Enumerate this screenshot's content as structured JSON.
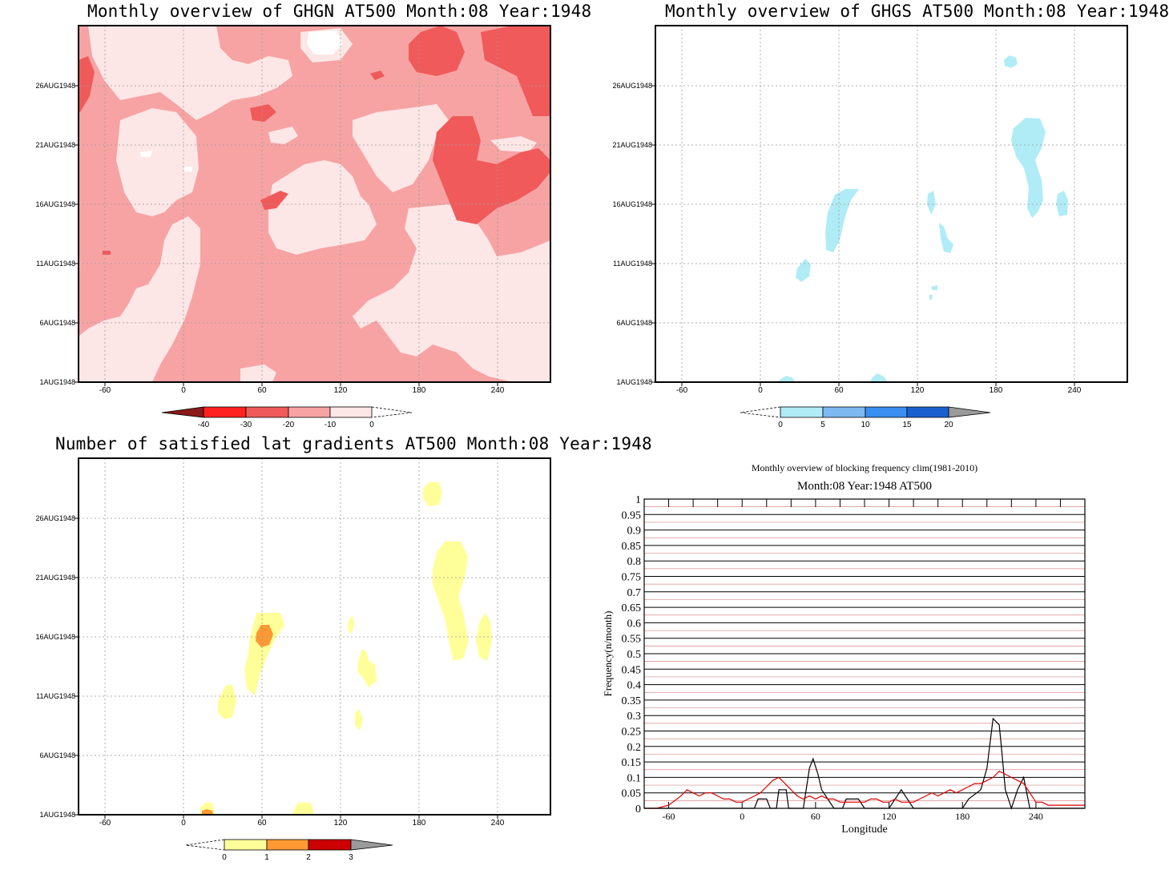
{
  "titles": {
    "ghgn": "Monthly overview of GHGN AT500 Month:08 Year:1948",
    "ghgs": "Monthly overview of GHGS AT500 Month:08 Year:1948",
    "lat": "Number of satisfied lat gradients AT500 Month:08 Year:1948",
    "freq_main": "Monthly overview of blocking frequency clim(1981-2010)",
    "freq_sub": "Month:08 Year:1948  AT500"
  },
  "date_ticks": [
    "1AUG1948",
    "6AUG1948",
    "11AUG1948",
    "16AUG1948",
    "21AUG1948",
    "26AUG1948"
  ],
  "lon_ticks": [
    "-60",
    "0",
    "60",
    "120",
    "180",
    "240"
  ],
  "colorbars": {
    "ghgn": {
      "labels": [
        "-40",
        "-30",
        "-20",
        "-10",
        "0"
      ],
      "colors": [
        "#8b1a1a",
        "#ff2020",
        "#f05a5a",
        "#f7a3a3",
        "#fde6e6"
      ]
    },
    "ghgs": {
      "labels": [
        "0",
        "5",
        "10",
        "15",
        "20"
      ],
      "colors": [
        "#b0ecf6",
        "#7db8f0",
        "#3a8ef0",
        "#1a60d0",
        "#9a9a9a"
      ]
    },
    "lat": {
      "labels": [
        "0",
        "1",
        "2",
        "3"
      ],
      "colors": [
        "#ffff99",
        "#ff9933",
        "#cc0000",
        "#9a9a9a"
      ]
    }
  },
  "chart_data": [
    {
      "type": "heatmap",
      "title": "Monthly overview of GHGN AT500 Month:08 Year:1948",
      "x_ticks": [
        "-60",
        "0",
        "60",
        "120",
        "180",
        "240"
      ],
      "y_ticks": [
        "1AUG1948",
        "6AUG1948",
        "11AUG1948",
        "16AUG1948",
        "21AUG1948",
        "26AUG1948"
      ],
      "colorbar": [
        -40,
        -30,
        -20,
        -10,
        0
      ],
      "grid": true
    },
    {
      "type": "heatmap",
      "title": "Monthly overview of GHGS AT500 Month:08 Year:1948",
      "x_ticks": [
        "-60",
        "0",
        "60",
        "120",
        "180",
        "240"
      ],
      "y_ticks": [
        "1AUG1948",
        "6AUG1948",
        "11AUG1948",
        "16AUG1948",
        "21AUG1948",
        "26AUG1948"
      ],
      "colorbar": [
        0,
        5,
        10,
        15,
        20
      ],
      "grid": true
    },
    {
      "type": "heatmap",
      "title": "Number of satisfied lat gradients AT500 Month:08 Year:1948",
      "x_ticks": [
        "-60",
        "0",
        "60",
        "120",
        "180",
        "240"
      ],
      "y_ticks": [
        "1AUG1948",
        "6AUG1948",
        "11AUG1948",
        "16AUG1948",
        "21AUG1948",
        "26AUG1948"
      ],
      "colorbar": [
        0,
        1,
        2,
        3
      ],
      "grid": true
    },
    {
      "type": "line",
      "title": "Monthly overview of blocking frequency clim(1981-2010)",
      "subtitle": "Month:08 Year:1948  AT500",
      "xlabel": "Longitude",
      "ylabel": "Frequency(n/month)",
      "xlim": [
        -80,
        280
      ],
      "ylim": [
        0,
        1
      ],
      "x_ticks": [
        -60,
        0,
        60,
        120,
        180,
        240
      ],
      "y_ticks": [
        0,
        0.05,
        0.1,
        0.15,
        0.2,
        0.25,
        0.3,
        0.35,
        0.4,
        0.45,
        0.5,
        0.55,
        0.6,
        0.65,
        0.7,
        0.75,
        0.8,
        0.85,
        0.9,
        0.95,
        1
      ],
      "series": [
        {
          "color": "#000000",
          "x": [
            -80,
            10,
            13,
            20,
            23,
            28,
            30,
            36,
            38,
            50,
            55,
            58,
            62,
            65,
            70,
            75,
            82,
            85,
            95,
            100,
            110,
            120,
            125,
            130,
            135,
            140,
            145,
            155,
            180,
            185,
            195,
            200,
            205,
            210,
            212,
            215,
            220,
            225,
            230,
            235,
            240,
            280
          ],
          "y": [
            0,
            0,
            0.03,
            0.03,
            0,
            0,
            0.06,
            0.06,
            0,
            0,
            0.13,
            0.16,
            0.11,
            0.06,
            0.03,
            0,
            0,
            0.03,
            0.03,
            0,
            0,
            0,
            0.03,
            0.06,
            0.03,
            0,
            0,
            0,
            0,
            0.03,
            0.06,
            0.13,
            0.29,
            0.27,
            0.19,
            0.06,
            0,
            0.06,
            0.1,
            0,
            0,
            0
          ]
        },
        {
          "color": "#dd0000",
          "x": [
            -80,
            -70,
            -60,
            -50,
            -45,
            -40,
            -35,
            -30,
            -25,
            -20,
            -15,
            -10,
            -5,
            0,
            5,
            10,
            15,
            20,
            25,
            30,
            35,
            40,
            45,
            50,
            55,
            60,
            65,
            70,
            75,
            80,
            85,
            90,
            95,
            100,
            105,
            110,
            115,
            120,
            125,
            130,
            135,
            140,
            145,
            150,
            155,
            160,
            165,
            170,
            175,
            180,
            185,
            190,
            195,
            200,
            205,
            210,
            215,
            220,
            225,
            230,
            235,
            240,
            245,
            250,
            255,
            260,
            270,
            280
          ],
          "y": [
            0,
            0,
            0.01,
            0.04,
            0.06,
            0.05,
            0.04,
            0.05,
            0.05,
            0.04,
            0.03,
            0.03,
            0.02,
            0.02,
            0.03,
            0.04,
            0.05,
            0.07,
            0.09,
            0.1,
            0.08,
            0.06,
            0.04,
            0.03,
            0.04,
            0.03,
            0.04,
            0.03,
            0.03,
            0.02,
            0.02,
            0.02,
            0.02,
            0.02,
            0.03,
            0.03,
            0.02,
            0.02,
            0.03,
            0.02,
            0.02,
            0.02,
            0.03,
            0.04,
            0.05,
            0.04,
            0.05,
            0.06,
            0.05,
            0.06,
            0.07,
            0.08,
            0.08,
            0.09,
            0.1,
            0.12,
            0.11,
            0.1,
            0.09,
            0.08,
            0.05,
            0.02,
            0.02,
            0.01,
            0.01,
            0.01,
            0.01,
            0.01
          ]
        }
      ]
    }
  ]
}
